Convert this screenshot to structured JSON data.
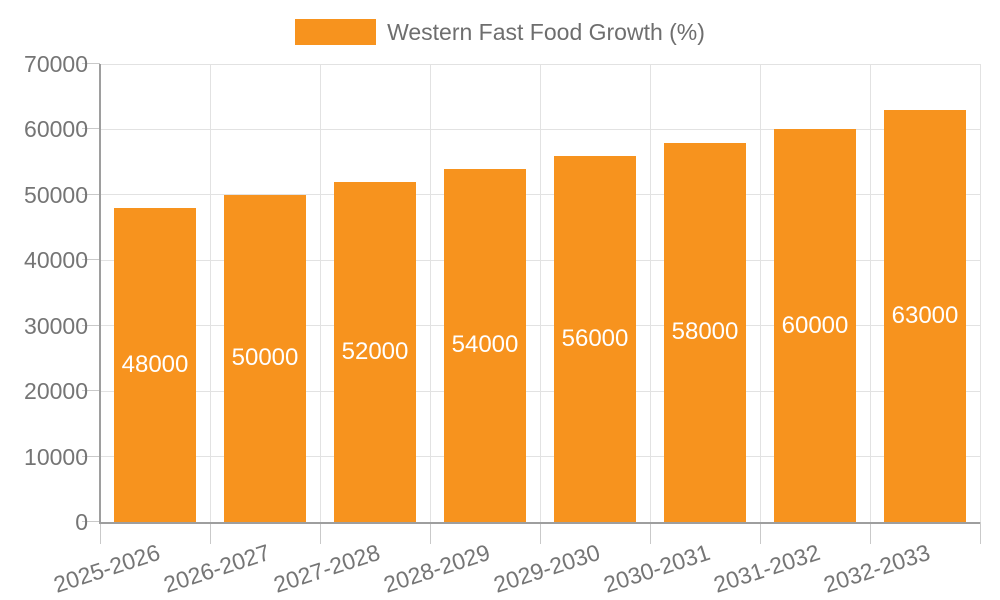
{
  "legend": {
    "label": "Western Fast Food Growth (%)"
  },
  "chart_data": {
    "type": "bar",
    "title": "",
    "xlabel": "",
    "ylabel": "",
    "categories": [
      "2025-2026",
      "2026-2027",
      "2027-2028",
      "2028-2029",
      "2029-2030",
      "2030-2031",
      "2031-2032",
      "2032-2033"
    ],
    "series": [
      {
        "name": "Western Fast Food Growth (%)",
        "values": [
          48000,
          50000,
          52000,
          54000,
          56000,
          58000,
          60000,
          63000
        ]
      }
    ],
    "bar_value_labels": [
      "48000",
      "50000",
      "52000",
      "54000",
      "56000",
      "58000",
      "60000",
      "63000"
    ],
    "ylim": [
      0,
      70000
    ],
    "ytick_step": 10000,
    "ytick_labels": [
      "0",
      "10000",
      "20000",
      "30000",
      "40000",
      "50000",
      "60000",
      "70000"
    ],
    "grid": true,
    "legend_position": "top"
  },
  "colors": {
    "bar": "#F7931E",
    "bar_label": "#FFFFFF",
    "axis_line": "#9E9E9E",
    "tick": "#C9C9C9",
    "grid": "#E2E2E2",
    "tick_label": "#757575",
    "legend_text": "#6E6E6E",
    "background": "#FFFFFF"
  }
}
